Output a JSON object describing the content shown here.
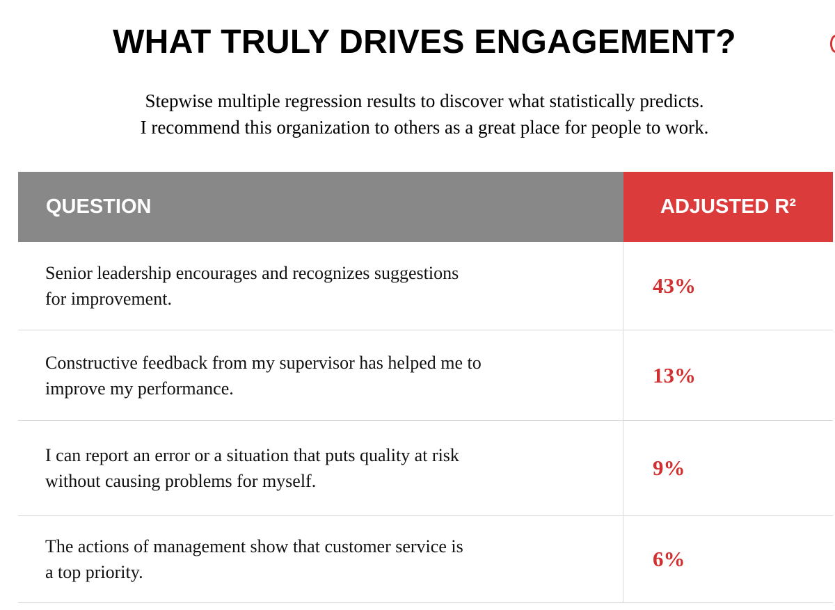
{
  "title": "WHAT TRULY DRIVES ENGAGEMENT?",
  "subtitle": {
    "line1": "Stepwise multiple regression results to discover what statistically predicts.",
    "line2": "I recommend this organization to others as a great place for people to work."
  },
  "table": {
    "headers": {
      "question": "QUESTION",
      "value": "ADJUSTED R²"
    },
    "rows": [
      {
        "line1": "Senior leadership encourages and recognizes suggestions",
        "line2": "for improvement.",
        "value": "43%"
      },
      {
        "line1": "Constructive feedback from my supervisor has helped me to",
        "line2": "improve my performance.",
        "value": "13%"
      },
      {
        "line1": "I can report an error or a situation that puts quality at risk",
        "line2": "without causing problems for myself.",
        "value": "9%"
      },
      {
        "line1": "The actions of management show that customer service is",
        "line2": "a top priority.",
        "value": "6%"
      }
    ]
  },
  "colors": {
    "header_gray": "#888888",
    "header_red": "#db3b3b",
    "value_red": "#d23030"
  }
}
